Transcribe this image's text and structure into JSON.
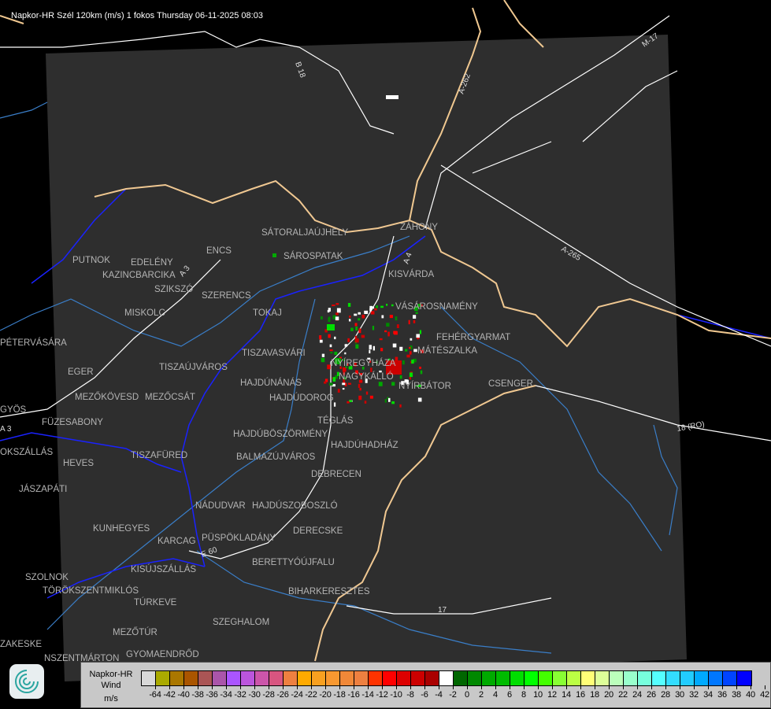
{
  "title": "Napkor-HR Szél 120km (m/s) 1 fokos Thursday 06-11-2025 08:03",
  "colors": {
    "background": "#000000",
    "radar_area": "#2e2e2e",
    "border_national": "#f0c890",
    "border_county": "#0000ff",
    "rivers": "#3a7ec8",
    "roads": "#ffffff",
    "city_label": "#b4b4b4"
  },
  "cities": [
    "SÁTORALJAÚJHELY",
    "ZÁHONY",
    "SÁROSPATAK",
    "PUTNOK",
    "EDELÉNY",
    "KAZINCBARCIKA",
    "ENCS",
    "KISVÁRDA",
    "SZIKSZÓ",
    "SZERENCS",
    "VÁSÁROSNAMÉNY",
    "TOKAJ",
    "MISKOLC",
    "PÉTERVÁSÁRA",
    "FEHÉRGYARMAT",
    "MÁTÉSZALKA",
    "TISZAVASVÁRI",
    "NYÍREGYHÁZA",
    "TISZAÚJVÁROS",
    "EGER",
    "NAGYKÁLLÓ",
    "HAJDÚNÁNÁS",
    "NYÍRBÁTOR",
    "CSENGER",
    "MEZŐKÖVESD",
    "MEZŐCSÁT",
    "HAJDÚDOROG",
    "GYÖS",
    "FÜZESABONY",
    "TÉGLÁS",
    "HAJDÚBÖSZÖRMÉNY",
    "HAJDÚHADHÁZ",
    "TISZAFÜRED",
    "BALMAZÚJVÁROS",
    "HEVES",
    "OKSZÁLLÁS",
    "DEBRECEN",
    "JÁSZAPÁTI",
    "NÁDUDVAR",
    "HAJDÚSZOBOSZLÓ",
    "KUNHEGYES",
    "KARCAG",
    "PÜSPÖKLADÁNY",
    "DERECSKE",
    "BERETTYÓÚJFALU",
    "KISÚJSZÁLLÁS",
    "SZOLNOK",
    "TÖRÖKSZENTMIKLÓS",
    "BIHARKERESZTES",
    "TÚRKEVE",
    "SZEGHALOM",
    "MEZŐTÚR",
    "ZAKESKE",
    "GYOMAENDRŐD",
    "NSZENTMÁRTON"
  ],
  "roads": [
    "B 18",
    "A-262",
    "M-17",
    "A-265",
    "18 (RO)",
    "17",
    "A 3",
    "A 4",
    "E 60",
    "A 3"
  ],
  "legend": {
    "line1": "Napkor-HR",
    "line2": "Wind",
    "unit": "m/s",
    "swatch_colors": [
      "#d8d8d8",
      "#aaaa00",
      "#aa7700",
      "#aa5500",
      "#aa5555",
      "#aa55aa",
      "#aa55ff",
      "#bb55dd",
      "#cc55aa",
      "#d85580",
      "#ee8040",
      "#ffaa00",
      "#f8a020",
      "#f89830",
      "#f08838",
      "#ee8040",
      "#ff3300",
      "#ff0000",
      "#dd0000",
      "#cc0000",
      "#aa0000",
      "#ffffff",
      "#006600",
      "#008800",
      "#00aa00",
      "#00bb00",
      "#00dd00",
      "#00ff00",
      "#44ff00",
      "#88ff33",
      "#bbff44",
      "#ffff77",
      "#ddff99",
      "#bbffbb",
      "#99ffcc",
      "#77ffdd",
      "#55ffff",
      "#33ddff",
      "#22ccff",
      "#00aaff",
      "#0077ff",
      "#0044ff",
      "#0000ff"
    ],
    "tick_labels": [
      "-64",
      "-42",
      "-40",
      "-38",
      "-36",
      "-34",
      "-32",
      "-30",
      "-28",
      "-26",
      "-24",
      "-22",
      "-20",
      "-18",
      "-16",
      "-14",
      "-12",
      "-10",
      "-8",
      "-6",
      "-4",
      "-2",
      "0",
      "2",
      "4",
      "6",
      "8",
      "10",
      "12",
      "14",
      "16",
      "18",
      "20",
      "22",
      "24",
      "26",
      "28",
      "30",
      "32",
      "34",
      "36",
      "38",
      "40",
      "42"
    ]
  }
}
